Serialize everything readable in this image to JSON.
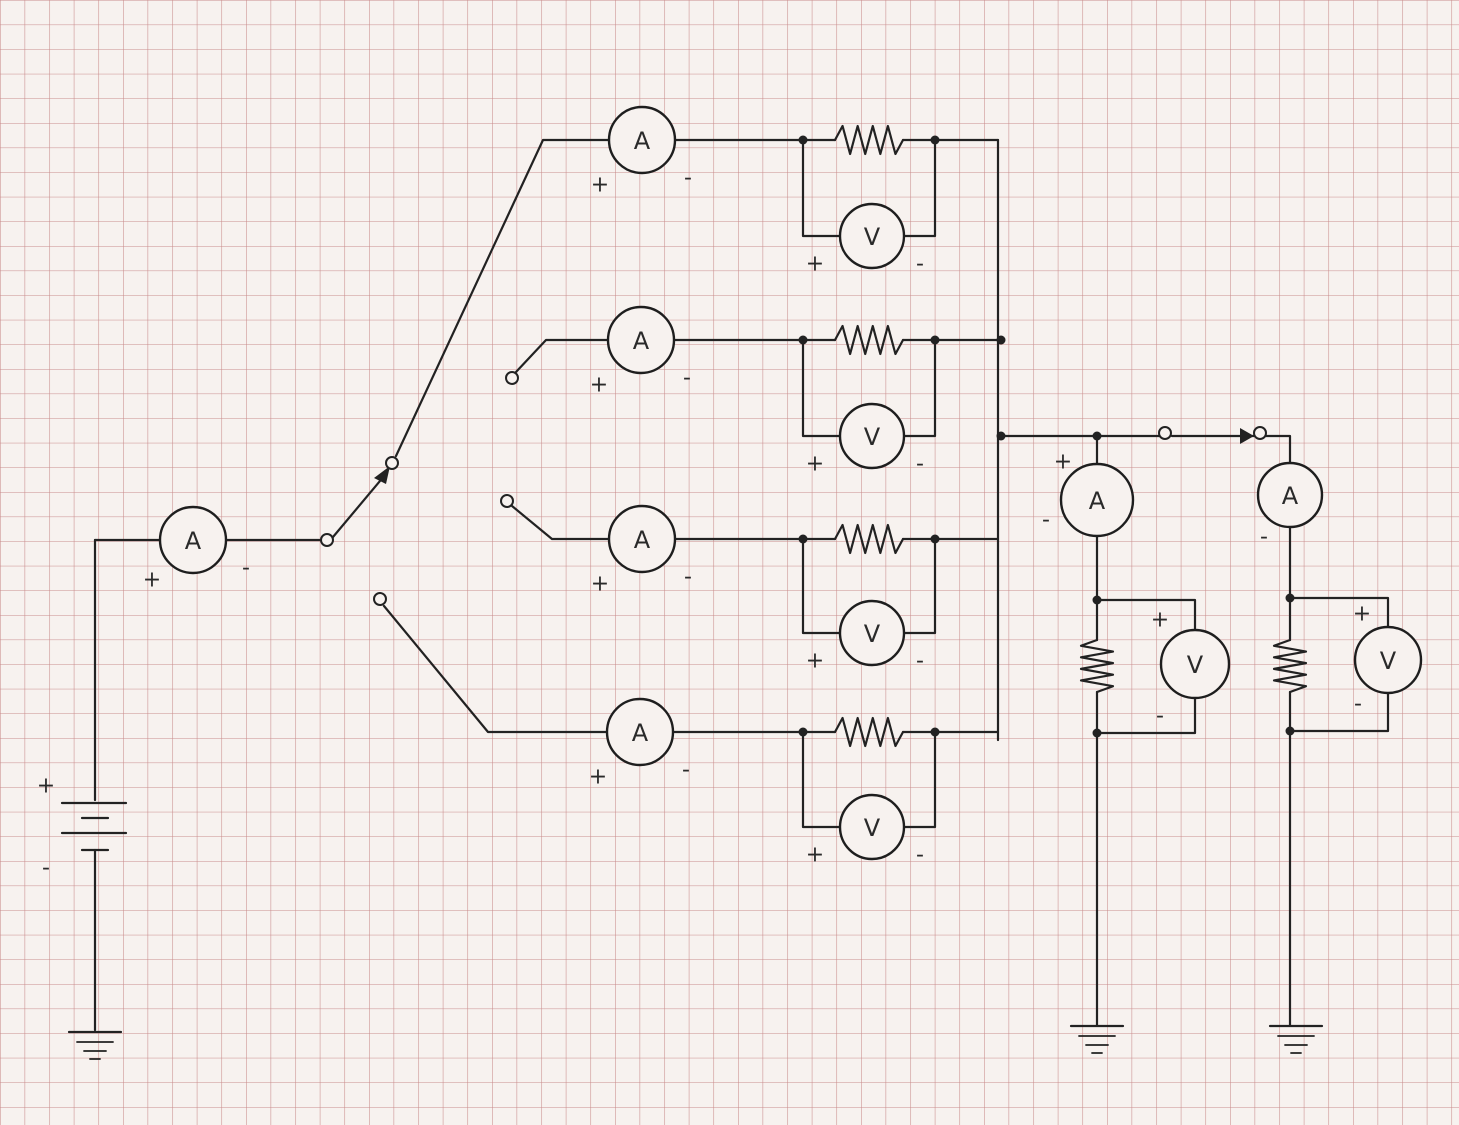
{
  "labels": {
    "ammeter": "A",
    "voltmeter": "V",
    "plus": "+",
    "minus": "-"
  },
  "colors": {
    "paper": "#f7f2ef",
    "grid": "#c98b8b",
    "ink": "#222222"
  },
  "icons": {
    "ammeter": "ammeter-icon",
    "voltmeter": "voltmeter-icon",
    "resistor": "resistor-icon",
    "battery": "battery-icon",
    "ground": "ground-icon",
    "switch": "switch-icon"
  },
  "components": {
    "ammeters": 7,
    "voltmeters": 6,
    "resistors": 6,
    "batteries": 1,
    "grounds": 3
  }
}
